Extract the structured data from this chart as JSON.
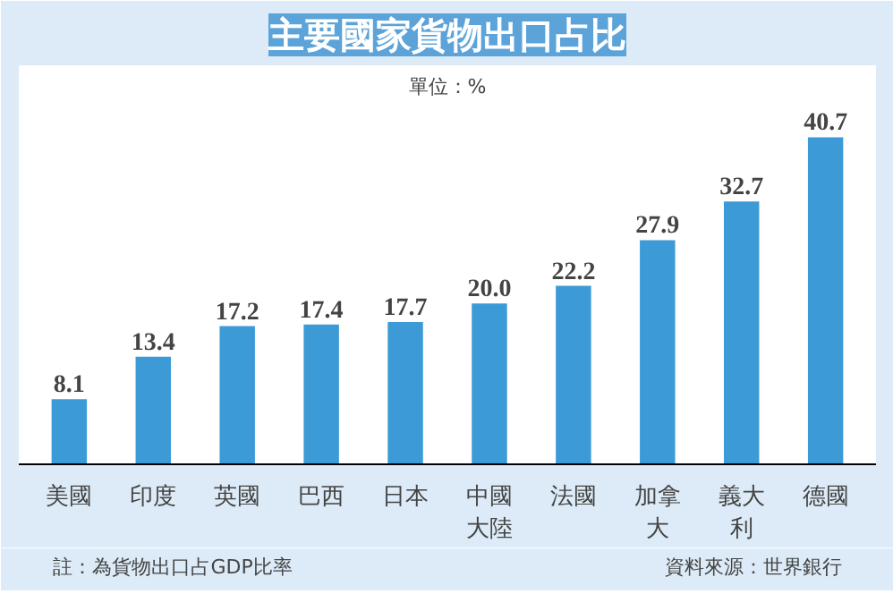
{
  "chart_data": {
    "type": "bar",
    "title": "主要國家貨物出口占比",
    "categories": [
      "美國",
      "印度",
      "英國",
      "巴西",
      "日本",
      "中國大陸",
      "法國",
      "加拿大",
      "義大利",
      "德國"
    ],
    "value_labels": [
      "8.1",
      "13.4",
      "17.2",
      "17.4",
      "17.7",
      "20.0",
      "22.2",
      "27.9",
      "32.7",
      "40.7"
    ],
    "values": [
      8.1,
      13.4,
      17.2,
      17.4,
      17.7,
      20.0,
      22.2,
      27.9,
      32.7,
      40.7
    ],
    "color": "#3c9ad6",
    "grid": false,
    "annotations": [
      "單位：%",
      "註：為貨物出口占GDP比率",
      "資料來源：世界銀行"
    ]
  }
}
